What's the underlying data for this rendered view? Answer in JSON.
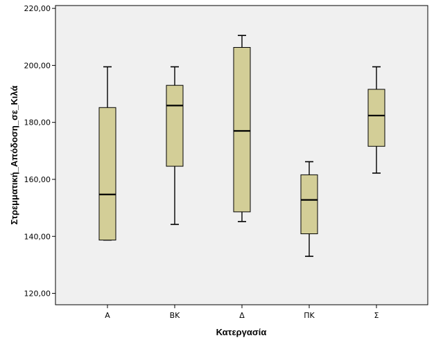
{
  "chart_data": {
    "type": "boxplot",
    "xlabel": "Κατεργασία",
    "ylabel": "Στρεμματική_Απόδοση_σε_Κιλά",
    "categories": [
      "Α",
      "ΒΚ",
      "Δ",
      "ΠΚ",
      "Σ"
    ],
    "yticks": [
      "120,00",
      "140,00",
      "160,00",
      "180,00",
      "200,00",
      "220,00"
    ],
    "ytick_values": [
      120,
      140,
      160,
      180,
      200,
      220
    ],
    "ylim": [
      116,
      221
    ],
    "boxes": [
      {
        "category": "Α",
        "min": 138.7,
        "q1": 138.7,
        "median": 154.7,
        "q3": 185.2,
        "max": 199.5
      },
      {
        "category": "ΒΚ",
        "min": 144.2,
        "q1": 164.6,
        "median": 185.9,
        "q3": 193.0,
        "max": 199.5
      },
      {
        "category": "Δ",
        "min": 145.2,
        "q1": 148.6,
        "median": 177.0,
        "q3": 206.3,
        "max": 210.5
      },
      {
        "category": "ΠΚ",
        "min": 133.0,
        "q1": 140.9,
        "median": 152.8,
        "q3": 161.6,
        "max": 166.2
      },
      {
        "category": "Σ",
        "min": 162.2,
        "q1": 171.6,
        "median": 182.4,
        "q3": 191.6,
        "max": 199.5
      }
    ],
    "colors": {
      "box_fill": "#D3CE97",
      "plot_background": "#F0F0F0",
      "axis": "#000000",
      "page_background": "#FFFFFF"
    },
    "grid": false,
    "legend": "none"
  }
}
